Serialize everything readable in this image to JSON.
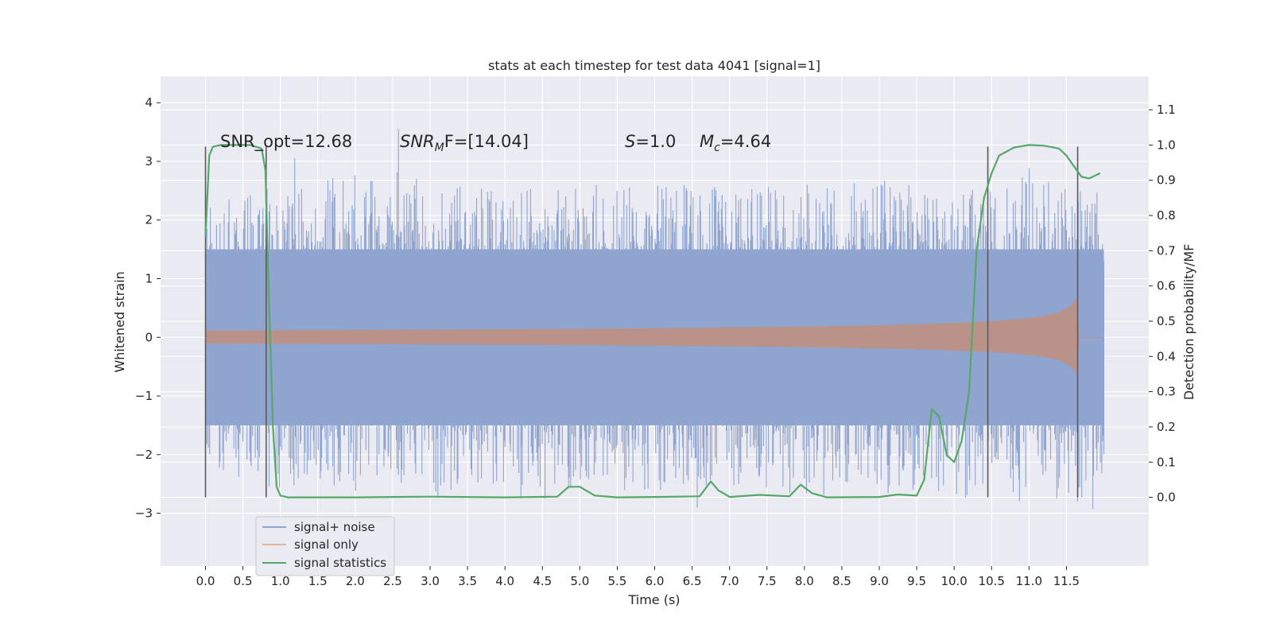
{
  "chart_data": {
    "type": "line",
    "title": "stats at each timestep for test data 4041 [signal=1]",
    "xlabel": "Time (s)",
    "ylabel": "Whitened strain",
    "ylabel_right": "Detection probability/MF",
    "xlim": [
      -0.6,
      12.6
    ],
    "ylim": [
      -3.9,
      4.45
    ],
    "ylim_right": [
      -0.195,
      1.195
    ],
    "x_ticks": [
      "0.0",
      "0.5",
      "1.0",
      "1.5",
      "2.0",
      "2.5",
      "3.0",
      "3.5",
      "4.0",
      "4.5",
      "5.0",
      "5.5",
      "6.0",
      "6.5",
      "7.0",
      "7.5",
      "8.0",
      "8.5",
      "9.0",
      "9.5",
      "10.0",
      "10.5",
      "11.0",
      "11.5"
    ],
    "y_ticks": [
      "−3",
      "−2",
      "−1",
      "0",
      "1",
      "2",
      "3",
      "4"
    ],
    "y_ticks_right": [
      "0.0",
      "0.1",
      "0.2",
      "0.3",
      "0.4",
      "0.5",
      "0.6",
      "0.7",
      "0.8",
      "0.9",
      "1.0",
      "1.1"
    ],
    "grid": true,
    "legend_position": "lower-left",
    "annotations": {
      "snr_opt": "SNR_opt=12.68",
      "snr_mf_sym": "SNR",
      "snr_mf_sub": "M",
      "snr_mf_val": "F=[14.04]",
      "s_sym": "S",
      "s_val": "=1.0",
      "mc_sym": "M",
      "mc_sub": "c",
      "mc_val": "=4.64"
    },
    "vertical_markers": [
      0.0,
      0.81,
      10.45,
      11.65
    ],
    "series": [
      {
        "name": "signal+ noise",
        "color": "#8fa4cf",
        "t_range": [
          0.0,
          12.0
        ],
        "envelope_upper": [
          2.2,
          2.6,
          2.5,
          2.7,
          2.8,
          2.9,
          2.6,
          2.7,
          2.6,
          2.5,
          2.7,
          2.6,
          2.6,
          2.7,
          2.5,
          2.6,
          2.7,
          2.6,
          2.7,
          2.6,
          2.5,
          2.6,
          2.9,
          2.7,
          2.6
        ],
        "envelope_lower": [
          -2.1,
          -2.5,
          -2.6,
          -2.5,
          -2.7,
          -2.6,
          -2.9,
          -2.6,
          -2.7,
          -2.8,
          -2.5,
          -2.6,
          -2.7,
          -2.5,
          -2.6,
          -2.7,
          -2.8,
          -2.6,
          -2.7,
          -2.6,
          -2.8,
          -2.7,
          -2.6,
          -2.9,
          -2.6
        ],
        "dense_band": [
          -1.5,
          1.5
        ]
      },
      {
        "name": "signal only",
        "color": "#dd8452",
        "chirp_time": [
          0.0,
          11.65,
          12.0
        ],
        "peak_amplitude": 1.05,
        "start_amplitude": 0.02
      },
      {
        "name": "signal statistics",
        "color": "#55a868",
        "x": [
          0.0,
          0.05,
          0.1,
          0.2,
          0.4,
          0.6,
          0.75,
          0.8,
          0.85,
          0.9,
          0.95,
          1.0,
          1.1,
          1.5,
          2.0,
          3.0,
          4.0,
          4.7,
          4.85,
          5.0,
          5.2,
          5.5,
          6.0,
          6.6,
          6.75,
          6.85,
          7.0,
          7.4,
          7.8,
          7.95,
          8.1,
          8.3,
          9.0,
          9.25,
          9.5,
          9.6,
          9.7,
          9.8,
          9.9,
          10.0,
          10.1,
          10.2,
          10.3,
          10.4,
          10.5,
          10.6,
          10.8,
          11.0,
          11.2,
          11.4,
          11.5,
          11.6,
          11.7,
          11.8,
          11.9,
          11.95
        ],
        "values": [
          0.74,
          0.97,
          0.995,
          1.0,
          1.0,
          1.0,
          0.99,
          0.93,
          0.55,
          0.2,
          0.03,
          0.005,
          0.0,
          0.0,
          0.0,
          0.002,
          0.0,
          0.002,
          0.03,
          0.03,
          0.005,
          0.0,
          0.001,
          0.003,
          0.045,
          0.02,
          0.001,
          0.007,
          0.003,
          0.036,
          0.012,
          0.0,
          0.001,
          0.008,
          0.005,
          0.05,
          0.25,
          0.23,
          0.12,
          0.1,
          0.16,
          0.3,
          0.7,
          0.85,
          0.92,
          0.97,
          0.993,
          1.0,
          0.998,
          0.99,
          0.97,
          0.94,
          0.91,
          0.905,
          0.915,
          0.92
        ]
      }
    ]
  },
  "legend": {
    "items": [
      {
        "label": "signal+ noise",
        "color": "#8fa4cf"
      },
      {
        "label": "signal only",
        "color": "#dd8452"
      },
      {
        "label": "signal statistics",
        "color": "#55a868"
      }
    ]
  }
}
